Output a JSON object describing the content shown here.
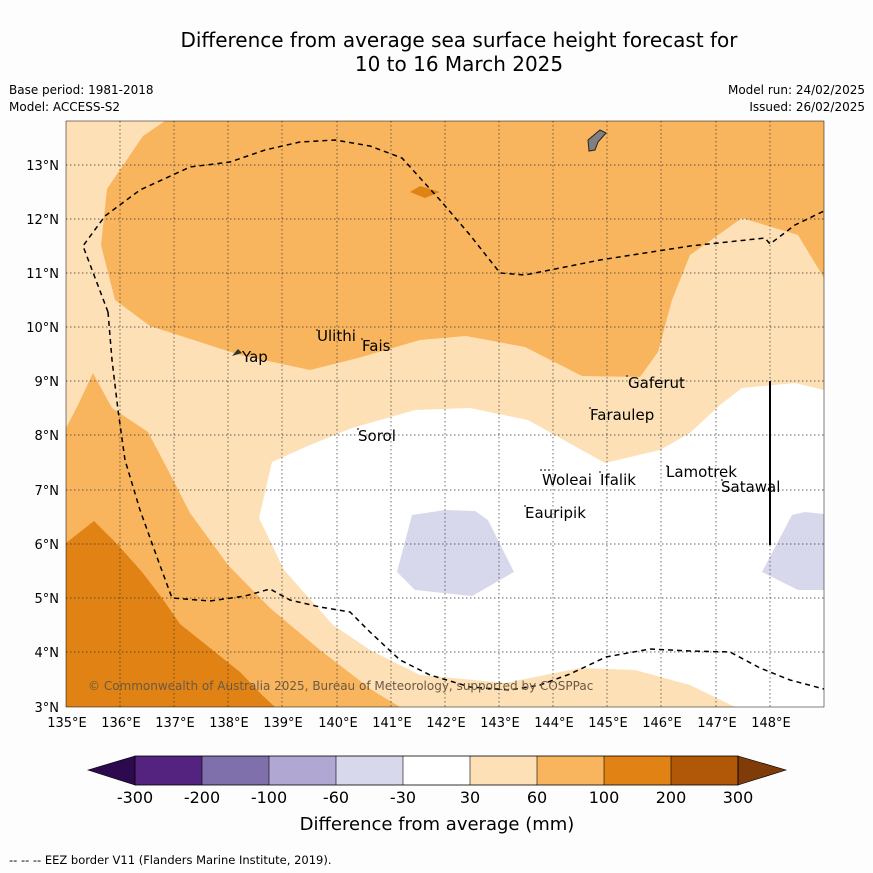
{
  "title_line1": "Difference from average sea surface height forecast for",
  "title_line2": "10 to 16 March 2025",
  "base_period": "Base period: 1981-2018",
  "model": "Model: ACCESS-S2",
  "model_run": "Model run: 24/02/2025",
  "issued": "Issued: 26/02/2025",
  "copyright": "© Commonwealth of Australia 2025, Bureau of Meteorology, supported by COSPPac",
  "x_ticks": [
    "135°E",
    "136°E",
    "137°E",
    "138°E",
    "139°E",
    "140°E",
    "141°E",
    "142°E",
    "143°E",
    "144°E",
    "145°E",
    "146°E",
    "147°E",
    "148°E"
  ],
  "y_ticks": [
    "13°N",
    "12°N",
    "11°N",
    "10°N",
    "9°N",
    "8°N",
    "7°N",
    "6°N",
    "5°N",
    "4°N",
    "3°N"
  ],
  "places": [
    {
      "name": "Yap",
      "label": "Yap"
    },
    {
      "name": "Ulithi",
      "label": "Ulithi"
    },
    {
      "name": "Fais",
      "label": "Fais"
    },
    {
      "name": "Gaferut",
      "label": "Gaferut"
    },
    {
      "name": "Faraulep",
      "label": "Faraulep"
    },
    {
      "name": "Sorol",
      "label": "Sorol"
    },
    {
      "name": "Woleai",
      "label": "Woleai"
    },
    {
      "name": "Ifalik",
      "label": "Ifalik"
    },
    {
      "name": "Lamotrek",
      "label": "Lamotrek"
    },
    {
      "name": "Satawal",
      "label": "Satawal"
    },
    {
      "name": "Eauripik",
      "label": "Eauripik"
    }
  ],
  "colorbar": {
    "label": "Difference from average (mm)",
    "ticks": [
      "-300",
      "-200",
      "-100",
      "-60",
      "-30",
      "30",
      "60",
      "100",
      "200",
      "300"
    ],
    "colors": {
      "below": "#2d0a4e",
      "-300_-200": "#54227f",
      "-200_-100": "#7f6fab",
      "-100_-60": "#b0a8d2",
      "-60_-30": "#d8d8ec",
      "-30_30": "#ffffff",
      "30_60": "#fde0b6",
      "60_100": "#f9b55e",
      "100_200": "#e08214",
      "200_300": "#b15708",
      "above": "#7f3b08"
    }
  },
  "footnote": "--  --  -- EEZ border V11 (Flanders Marine Institute, 2019)."
}
